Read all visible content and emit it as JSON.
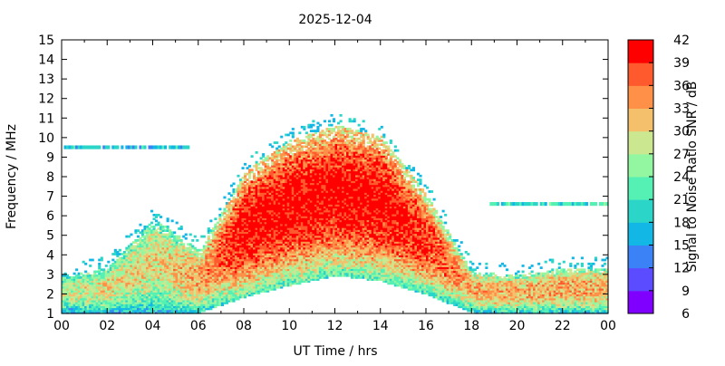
{
  "chart_data": {
    "type": "heatmap",
    "title": "2025-12-04",
    "xlabel": "UT Time / hrs",
    "ylabel": "Frequency / MHz",
    "colorbar_label": "Signal to Noise Ratio SNR / dB",
    "xlim": [
      0,
      24
    ],
    "ylim": [
      1,
      15
    ],
    "x_ticks": [
      "00",
      "02",
      "04",
      "06",
      "08",
      "10",
      "12",
      "14",
      "16",
      "18",
      "20",
      "22",
      "00"
    ],
    "y_ticks": [
      "1",
      "2",
      "3",
      "4",
      "5",
      "6",
      "7",
      "8",
      "9",
      "10",
      "11",
      "12",
      "13",
      "14",
      "15"
    ],
    "colorbar": {
      "range": [
        6,
        42
      ],
      "ticks": [
        "6",
        "9",
        "12",
        "15",
        "18",
        "21",
        "24",
        "27",
        "30",
        "33",
        "36",
        "39",
        "42"
      ],
      "colors": [
        "#8000ff",
        "#5b4cff",
        "#3b82f6",
        "#13b7e6",
        "#2bd6c8",
        "#55f0b4",
        "#92f7a0",
        "#cbe890",
        "#f4c06b",
        "#ff9048",
        "#ff5a2e",
        "#ff0000"
      ]
    },
    "snr_profile_db": [
      {
        "time_hr": 0,
        "lower_mhz": 1.0,
        "upper_mhz": 2.9,
        "peak_snr": 27
      },
      {
        "time_hr": 2,
        "lower_mhz": 1.0,
        "upper_mhz": 3.3,
        "peak_snr": 30
      },
      {
        "time_hr": 4,
        "lower_mhz": 1.0,
        "upper_mhz": 5.8,
        "peak_snr": 30
      },
      {
        "time_hr": 6,
        "lower_mhz": 1.0,
        "upper_mhz": 4.2,
        "peak_snr": 33
      },
      {
        "time_hr": 8,
        "lower_mhz": 1.8,
        "upper_mhz": 8.2,
        "peak_snr": 42
      },
      {
        "time_hr": 10,
        "lower_mhz": 2.4,
        "upper_mhz": 9.8,
        "peak_snr": 42
      },
      {
        "time_hr": 12,
        "lower_mhz": 2.9,
        "upper_mhz": 10.6,
        "peak_snr": 42
      },
      {
        "time_hr": 14,
        "lower_mhz": 2.6,
        "upper_mhz": 10.0,
        "peak_snr": 42
      },
      {
        "time_hr": 16,
        "lower_mhz": 1.9,
        "upper_mhz": 7.0,
        "peak_snr": 39
      },
      {
        "time_hr": 18,
        "lower_mhz": 1.0,
        "upper_mhz": 3.1,
        "peak_snr": 33
      },
      {
        "time_hr": 20,
        "lower_mhz": 1.0,
        "upper_mhz": 2.9,
        "peak_snr": 33
      },
      {
        "time_hr": 22,
        "lower_mhz": 1.0,
        "upper_mhz": 3.3,
        "peak_snr": 33
      },
      {
        "time_hr": 24,
        "lower_mhz": 1.0,
        "upper_mhz": 3.3,
        "peak_snr": 33
      }
    ],
    "bands": [
      {
        "freq_mhz": 9.5,
        "t_start_hr": 0,
        "t_end_hr": 5.5,
        "snr": 18
      },
      {
        "freq_mhz": 6.6,
        "t_start_hr": 18.8,
        "t_end_hr": 24,
        "snr": 21
      }
    ],
    "grid": false,
    "legend": "colorbar-right"
  }
}
